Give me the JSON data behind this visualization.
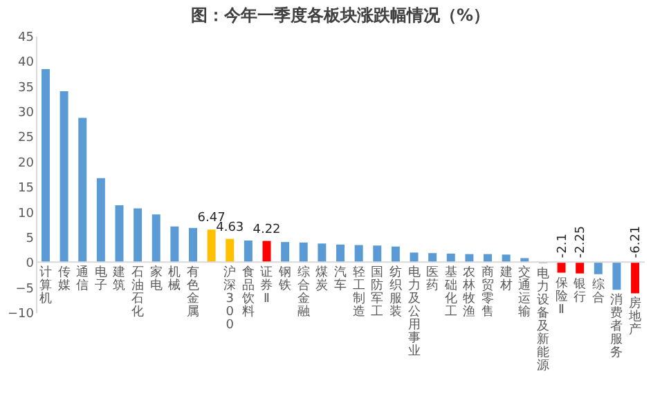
{
  "chart_data": {
    "type": "bar",
    "title": "图：今年一季度各板块涨跌幅情况（%）",
    "categories": [
      "计算机",
      "传媒",
      "通信",
      "电子",
      "建筑",
      "石油石化",
      "家电",
      "机械",
      "有色金属",
      null,
      "沪深300",
      "食品饮料",
      "证券Ⅱ",
      "钢铁",
      "综合金融",
      "煤炭",
      "汽车",
      "轻工制造",
      "国防军工",
      "纺织服装",
      "电力及公用事业",
      "医药",
      "基础化工",
      "农林牧渔",
      "商贸零售",
      "建材",
      "交通运输",
      "电力设备及新能源",
      "保险Ⅱ",
      "银行",
      "综合",
      "消费者服务",
      "房地产"
    ],
    "values": [
      38.4,
      34.0,
      28.7,
      16.7,
      11.3,
      10.7,
      9.5,
      7.1,
      6.8,
      6.47,
      4.63,
      4.3,
      4.22,
      4.0,
      3.9,
      3.7,
      3.5,
      3.4,
      3.3,
      3.1,
      1.9,
      1.8,
      1.7,
      1.6,
      1.6,
      1.5,
      0.8,
      -0.2,
      -2.1,
      -2.25,
      -2.4,
      -5.5,
      -6.21
    ],
    "colors": [
      "#5b9bd5",
      "#5b9bd5",
      "#5b9bd5",
      "#5b9bd5",
      "#5b9bd5",
      "#5b9bd5",
      "#5b9bd5",
      "#5b9bd5",
      "#5b9bd5",
      "#ffc000",
      "#ffc000",
      "#5b9bd5",
      "#ff0000",
      "#5b9bd5",
      "#5b9bd5",
      "#5b9bd5",
      "#5b9bd5",
      "#5b9bd5",
      "#5b9bd5",
      "#5b9bd5",
      "#5b9bd5",
      "#5b9bd5",
      "#5b9bd5",
      "#5b9bd5",
      "#5b9bd5",
      "#5b9bd5",
      "#5b9bd5",
      "#5b9bd5",
      "#ff0000",
      "#ff0000",
      "#5b9bd5",
      "#5b9bd5",
      "#ff0000"
    ],
    "value_labels": [
      null,
      null,
      null,
      null,
      null,
      null,
      null,
      null,
      null,
      "6.47",
      "4.63",
      null,
      "4.22",
      null,
      null,
      null,
      null,
      null,
      null,
      null,
      null,
      null,
      null,
      null,
      null,
      null,
      null,
      null,
      "-2.1",
      "-2.25",
      null,
      null,
      "-6.21"
    ],
    "ylim": [
      -10,
      45
    ],
    "yticks": [
      -10,
      -5,
      0,
      5,
      10,
      15,
      20,
      25,
      30,
      35,
      40,
      45
    ],
    "grid": false,
    "legend": false
  }
}
